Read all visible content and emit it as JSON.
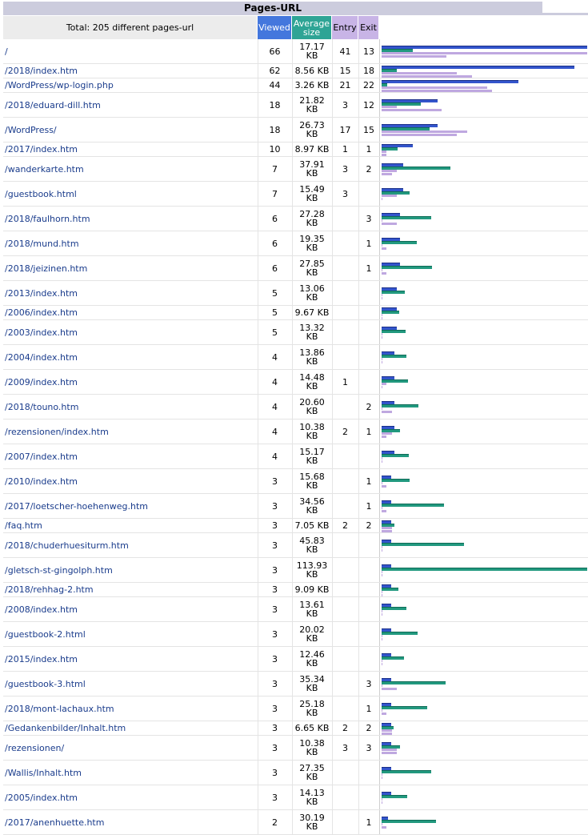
{
  "title": "Pages-URL",
  "header": {
    "total": "Total: 205 different pages-url",
    "viewed": "Viewed",
    "avg_size": "Average size",
    "entry": "Entry",
    "exit": "Exit"
  },
  "colors": {
    "viewed": "#4477dd",
    "size": "#2ea495",
    "entry_exit": "#c8b4e6",
    "link": "#1a3c8c"
  },
  "rows": [
    {
      "url": "/",
      "viewed": "66",
      "size": "17.17 KB",
      "entry": "41",
      "exit": "13"
    },
    {
      "url": "/2018/index.htm",
      "viewed": "62",
      "size": "8.56 KB",
      "entry": "15",
      "exit": "18"
    },
    {
      "url": "/WordPress/wp-login.php",
      "viewed": "44",
      "size": "3.26 KB",
      "entry": "21",
      "exit": "22"
    },
    {
      "url": "/2018/eduard-dill.htm",
      "viewed": "18",
      "size": "21.82 KB",
      "entry": "3",
      "exit": "12"
    },
    {
      "url": "/WordPress/",
      "viewed": "18",
      "size": "26.73 KB",
      "entry": "17",
      "exit": "15"
    },
    {
      "url": "/2017/index.htm",
      "viewed": "10",
      "size": "8.97 KB",
      "entry": "1",
      "exit": "1"
    },
    {
      "url": "/wanderkarte.htm",
      "viewed": "7",
      "size": "37.91 KB",
      "entry": "3",
      "exit": "2"
    },
    {
      "url": "/guestbook.html",
      "viewed": "7",
      "size": "15.49 KB",
      "entry": "3",
      "exit": ""
    },
    {
      "url": "/2018/faulhorn.htm",
      "viewed": "6",
      "size": "27.28 KB",
      "entry": "",
      "exit": "3"
    },
    {
      "url": "/2018/mund.htm",
      "viewed": "6",
      "size": "19.35 KB",
      "entry": "",
      "exit": "1"
    },
    {
      "url": "/2018/jeizinen.htm",
      "viewed": "6",
      "size": "27.85 KB",
      "entry": "",
      "exit": "1"
    },
    {
      "url": "/2013/index.htm",
      "viewed": "5",
      "size": "13.06 KB",
      "entry": "",
      "exit": ""
    },
    {
      "url": "/2006/index.htm",
      "viewed": "5",
      "size": "9.67 KB",
      "entry": "",
      "exit": ""
    },
    {
      "url": "/2003/index.htm",
      "viewed": "5",
      "size": "13.32 KB",
      "entry": "",
      "exit": ""
    },
    {
      "url": "/2004/index.htm",
      "viewed": "4",
      "size": "13.86 KB",
      "entry": "",
      "exit": ""
    },
    {
      "url": "/2009/index.htm",
      "viewed": "4",
      "size": "14.48 KB",
      "entry": "1",
      "exit": ""
    },
    {
      "url": "/2018/touno.htm",
      "viewed": "4",
      "size": "20.60 KB",
      "entry": "",
      "exit": "2"
    },
    {
      "url": "/rezensionen/index.htm",
      "viewed": "4",
      "size": "10.38 KB",
      "entry": "2",
      "exit": "1"
    },
    {
      "url": "/2007/index.htm",
      "viewed": "4",
      "size": "15.17 KB",
      "entry": "",
      "exit": ""
    },
    {
      "url": "/2010/index.htm",
      "viewed": "3",
      "size": "15.68 KB",
      "entry": "",
      "exit": "1"
    },
    {
      "url": "/2017/loetscher-hoehenweg.htm",
      "viewed": "3",
      "size": "34.56 KB",
      "entry": "",
      "exit": "1"
    },
    {
      "url": "/faq.htm",
      "viewed": "3",
      "size": "7.05 KB",
      "entry": "2",
      "exit": "2"
    },
    {
      "url": "/2018/chuderhuesiturm.htm",
      "viewed": "3",
      "size": "45.83 KB",
      "entry": "",
      "exit": ""
    },
    {
      "url": "/gletsch-st-gingolph.htm",
      "viewed": "3",
      "size": "113.93 KB",
      "entry": "",
      "exit": ""
    },
    {
      "url": "/2018/rehhag-2.htm",
      "viewed": "3",
      "size": "9.09 KB",
      "entry": "",
      "exit": ""
    },
    {
      "url": "/2008/index.htm",
      "viewed": "3",
      "size": "13.61 KB",
      "entry": "",
      "exit": ""
    },
    {
      "url": "/guestbook-2.html",
      "viewed": "3",
      "size": "20.02 KB",
      "entry": "",
      "exit": ""
    },
    {
      "url": "/2015/index.htm",
      "viewed": "3",
      "size": "12.46 KB",
      "entry": "",
      "exit": ""
    },
    {
      "url": "/guestbook-3.html",
      "viewed": "3",
      "size": "35.34 KB",
      "entry": "",
      "exit": "3"
    },
    {
      "url": "/2018/mont-lachaux.htm",
      "viewed": "3",
      "size": "25.18 KB",
      "entry": "",
      "exit": "1"
    },
    {
      "url": "/Gedankenbilder/Inhalt.htm",
      "viewed": "3",
      "size": "6.65 KB",
      "entry": "2",
      "exit": "2"
    },
    {
      "url": "/rezensionen/",
      "viewed": "3",
      "size": "10.38 KB",
      "entry": "3",
      "exit": "3"
    },
    {
      "url": "/Wallis/Inhalt.htm",
      "viewed": "3",
      "size": "27.35 KB",
      "entry": "",
      "exit": ""
    },
    {
      "url": "/2005/index.htm",
      "viewed": "3",
      "size": "14.13 KB",
      "entry": "",
      "exit": ""
    },
    {
      "url": "/2017/anenhuette.htm",
      "viewed": "2",
      "size": "30.19 KB",
      "entry": "",
      "exit": "1"
    }
  ]
}
